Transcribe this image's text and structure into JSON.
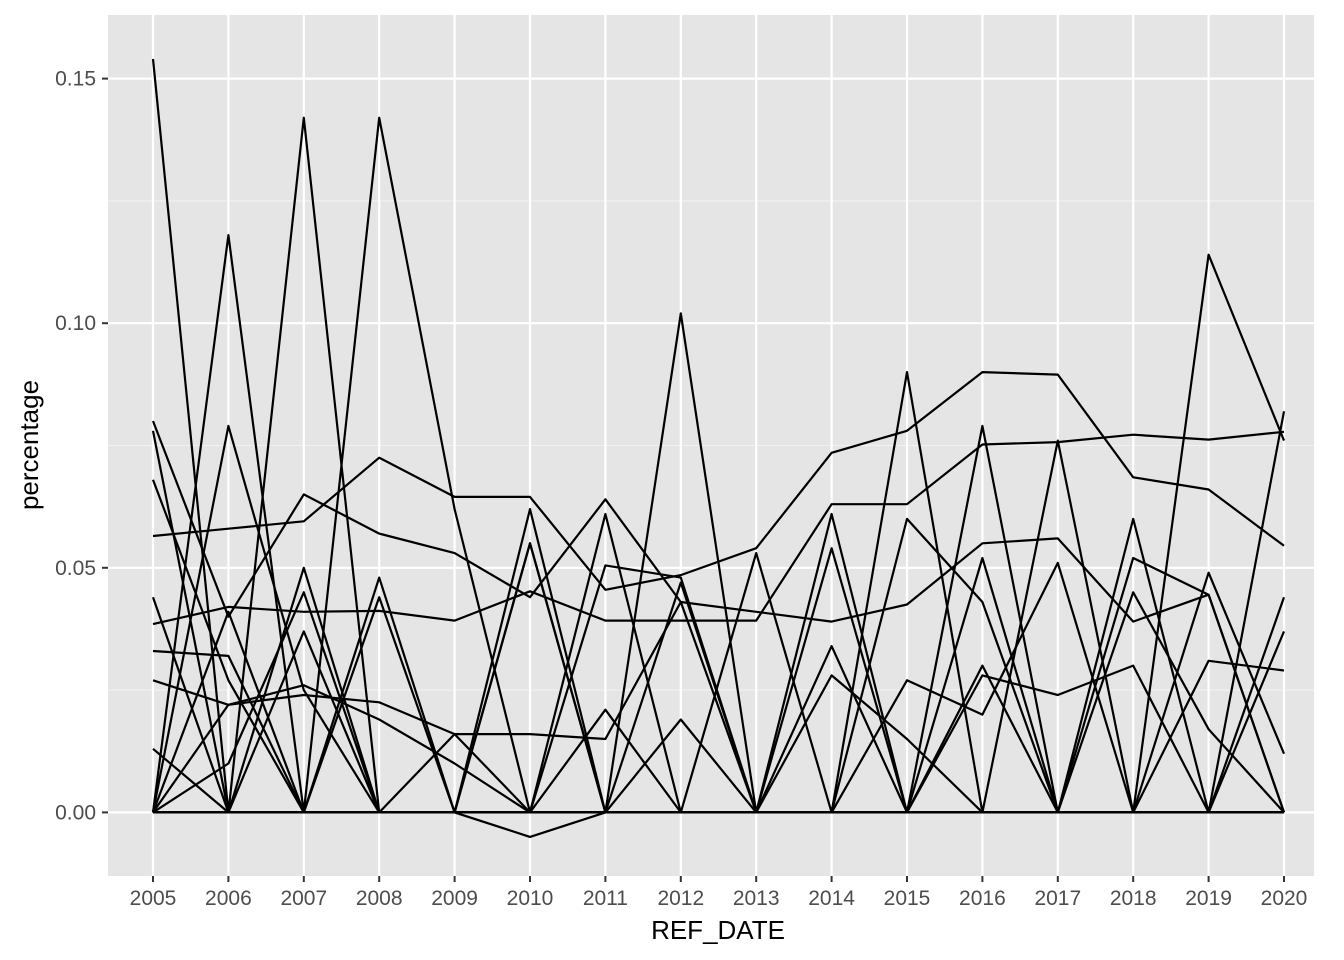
{
  "chart_data": {
    "type": "line",
    "title": "",
    "xlabel": "REF_DATE",
    "ylabel": "percentage",
    "x": [
      "2005",
      "2006",
      "2007",
      "2008",
      "2009",
      "2010",
      "2011",
      "2012",
      "2013",
      "2014",
      "2015",
      "2016",
      "2017",
      "2018",
      "2019",
      "2020"
    ],
    "yticks": [
      "0.00",
      "0.05",
      "0.10",
      "0.15"
    ],
    "ylim": [
      -0.013,
      0.163
    ],
    "grid": true,
    "legend": "none",
    "background_color": "#e5e5e5",
    "line_color": "#000000",
    "series": [
      {
        "values": [
          0.154,
          0.0,
          0.142,
          0.0,
          0.0,
          0.062,
          0.0,
          0.102,
          0.0,
          0.061,
          0.0,
          0.079,
          0.0,
          0.06,
          0.0,
          0.082
        ]
      },
      {
        "values": [
          0.0,
          0.118,
          0.0,
          0.142,
          0.062,
          0.0,
          0.061,
          0.0,
          0.053,
          0.0,
          0.09,
          0.0,
          0.076,
          0.0,
          0.114,
          0.076
        ]
      },
      {
        "values": [
          0.0565,
          0.058,
          0.0595,
          0.0725,
          0.0645,
          0.0645,
          0.0455,
          0.0485,
          0.054,
          0.0735,
          0.078,
          0.09,
          0.0895,
          0.0685,
          0.066,
          0.0545
        ]
      },
      {
        "values": [
          0.0385,
          0.042,
          0.041,
          0.0412,
          0.0392,
          0.0452,
          0.0392,
          0.0392,
          0.0392,
          0.063,
          0.063,
          0.0752,
          0.0757,
          0.0772,
          0.0762,
          0.0778
        ]
      },
      {
        "values": [
          0.08,
          0.04,
          0.065,
          0.057,
          0.053,
          0.044,
          0.064,
          0.043,
          0.041,
          0.039,
          0.0425,
          0.055,
          0.056,
          0.039,
          0.0445,
          0.0
        ]
      },
      {
        "values": [
          0.033,
          0.032,
          0.0,
          0.044,
          0.0,
          0.0,
          0.0505,
          0.048,
          0.0,
          0.0,
          0.06,
          0.043,
          0.0,
          0.052,
          0.0445,
          0.0
        ]
      },
      {
        "values": [
          0.0,
          0.079,
          0.025,
          0.0,
          0.0,
          0.055,
          0.0,
          0.0,
          0.0,
          0.054,
          0.0,
          0.052,
          0.0,
          0.0,
          0.049,
          0.012
        ]
      },
      {
        "values": [
          0.027,
          0.022,
          0.024,
          0.0225,
          0.016,
          0.016,
          0.015,
          0.043,
          0.0,
          0.0,
          0.027,
          0.02,
          0.051,
          0.0,
          0.0,
          0.044
        ]
      },
      {
        "values": [
          0.044,
          0.0,
          0.037,
          0.0,
          0.0,
          0.055,
          0.0,
          0.0,
          0.0,
          0.034,
          0.0,
          0.0,
          0.0,
          0.0,
          0.0,
          0.0
        ]
      },
      {
        "values": [
          0.0,
          0.041,
          0.0,
          0.0,
          0.0,
          0.0,
          0.0,
          0.047,
          0.0,
          0.0,
          0.0,
          0.0,
          0.0,
          0.0,
          0.0,
          0.0
        ]
      },
      {
        "values": [
          0.0,
          0.0,
          0.0,
          0.0,
          0.0,
          -0.005,
          0.0,
          0.0,
          0.0,
          0.0,
          0.0,
          0.0,
          0.0,
          0.0,
          0.0,
          0.0
        ]
      },
      {
        "values": [
          0.068,
          0.027,
          0.0,
          0.048,
          0.0,
          0.0,
          0.0,
          0.0,
          0.0,
          0.0,
          0.0,
          0.0,
          0.0,
          0.0,
          0.0,
          0.0
        ]
      },
      {
        "values": [
          0.078,
          0.0,
          0.05,
          0.0,
          0.0,
          0.0,
          0.0,
          0.0,
          0.0,
          0.0,
          0.0,
          0.0,
          0.0,
          0.0,
          0.0,
          0.0
        ]
      },
      {
        "values": [
          0.013,
          0.0,
          0.0,
          0.0,
          0.0,
          0.0,
          0.0,
          0.0,
          0.0,
          0.0,
          0.0,
          0.0,
          0.0,
          0.0,
          0.0,
          0.0
        ]
      },
      {
        "values": [
          0.0,
          0.022,
          0.026,
          0.019,
          0.01,
          0.0,
          0.0,
          0.0,
          0.0,
          0.0,
          0.0,
          0.0,
          0.0,
          0.0,
          0.0,
          0.0
        ]
      },
      {
        "values": [
          0.0,
          0.0,
          0.0,
          0.0,
          0.0,
          0.0,
          0.021,
          0.0,
          0.0,
          0.028,
          0.015,
          0.0,
          0.0,
          0.0,
          0.0,
          0.0
        ]
      },
      {
        "values": [
          0.0,
          0.01,
          0.045,
          0.0,
          0.0,
          0.0,
          0.0,
          0.0,
          0.0,
          0.0,
          0.0,
          0.0,
          0.0,
          0.0,
          0.0,
          0.0
        ]
      },
      {
        "values": [
          0.0,
          0.0,
          0.0,
          0.0,
          0.016,
          0.0,
          0.0,
          0.019,
          0.0,
          0.0,
          0.0,
          0.0,
          0.0,
          0.0,
          0.0,
          0.0
        ]
      },
      {
        "values": [
          0.0,
          0.0,
          0.0,
          0.0,
          0.0,
          0.0,
          0.0,
          0.0,
          0.0,
          0.0,
          0.0,
          0.028,
          0.024,
          0.03,
          0.0,
          0.0
        ]
      },
      {
        "values": [
          0.0,
          0.0,
          0.0,
          0.0,
          0.0,
          0.0,
          0.0,
          0.0,
          0.0,
          0.0,
          0.0,
          0.0,
          0.0,
          0.045,
          0.017,
          0.0
        ]
      },
      {
        "values": [
          0.0,
          0.0,
          0.0,
          0.0,
          0.0,
          0.0,
          0.0,
          0.0,
          0.0,
          0.0,
          0.0,
          0.0,
          0.0,
          0.0,
          0.031,
          0.029
        ]
      },
      {
        "values": [
          0.0,
          0.0,
          0.0,
          0.0,
          0.0,
          0.0,
          0.0,
          0.0,
          0.0,
          0.0,
          0.0,
          0.03,
          0.0,
          0.0,
          0.0,
          0.0
        ]
      },
      {
        "values": [
          0.0,
          0.0,
          0.0,
          0.0,
          0.0,
          0.0,
          0.0,
          0.0,
          0.0,
          0.0,
          0.0,
          0.0,
          0.0,
          0.0,
          0.0,
          0.037
        ]
      },
      {
        "values": [
          0.0,
          0.0,
          0.0,
          0.0,
          0.0,
          0.0,
          0.0,
          0.0,
          0.0,
          0.0,
          0.0,
          0.0,
          0.0,
          0.0,
          0.0,
          0.0
        ]
      },
      {
        "values": [
          0.0,
          0.0,
          0.0,
          0.0,
          0.0,
          0.0,
          0.0,
          0.0,
          0.0,
          0.0,
          0.0,
          0.0,
          0.0,
          0.0,
          0.0,
          0.0
        ]
      },
      {
        "values": [
          0.0,
          0.0,
          0.0,
          0.0,
          0.0,
          0.0,
          0.0,
          0.0,
          0.0,
          0.0,
          0.0,
          0.0,
          0.0,
          0.0,
          0.0,
          0.0
        ]
      }
    ]
  }
}
